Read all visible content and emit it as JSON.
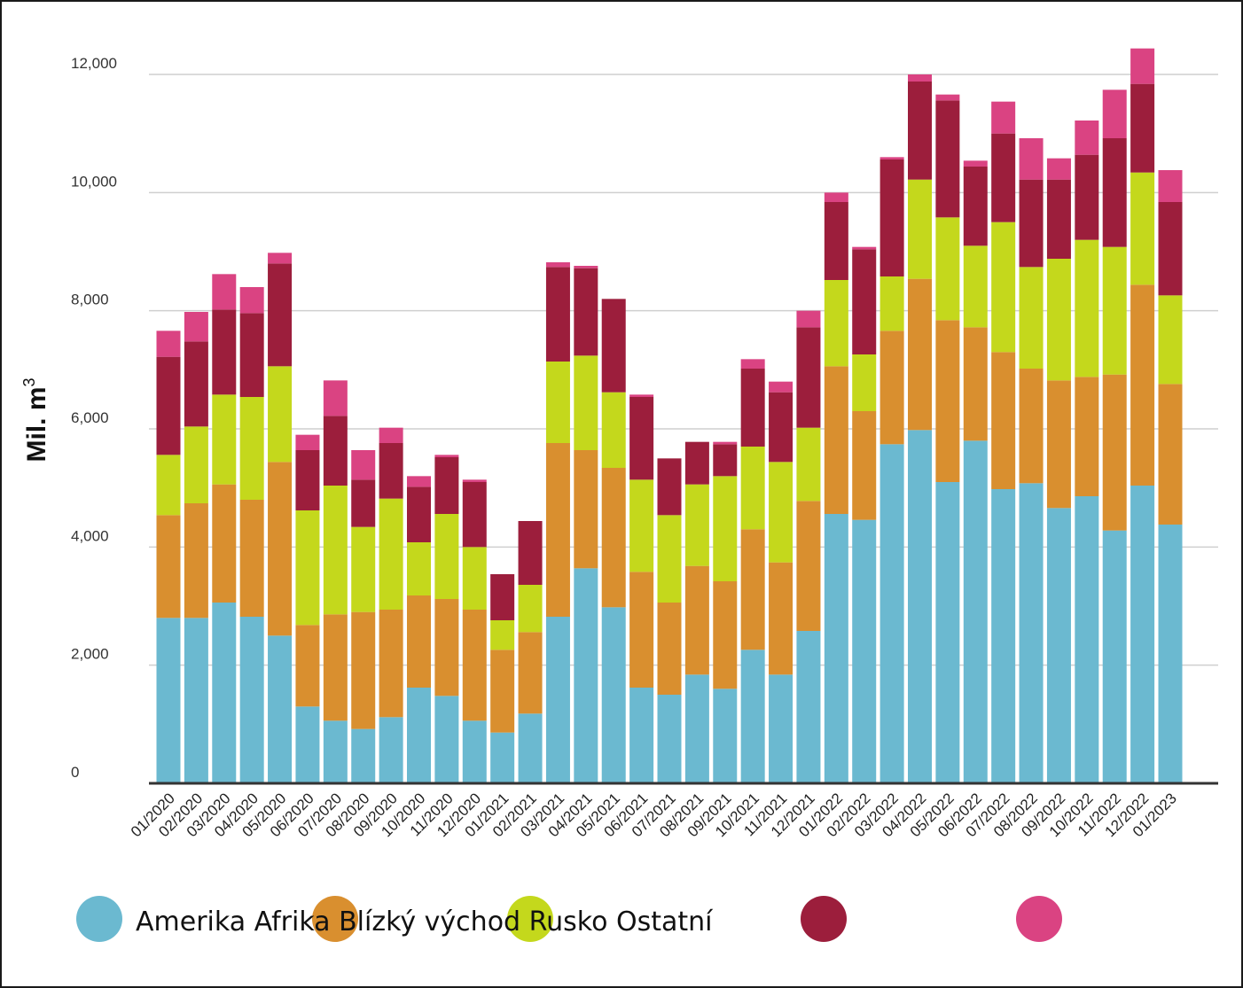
{
  "chart_data": {
    "type": "bar",
    "stacked": true,
    "ylabel": "Mil. m³",
    "ylim": [
      0,
      12000
    ],
    "yticks": [
      0,
      2000,
      4000,
      6000,
      8000,
      10000,
      12000
    ],
    "ytick_labels": [
      "0",
      "2,000",
      "4,000",
      "6,000",
      "8,000",
      "10,000",
      "12,000"
    ],
    "grid": true,
    "legend_placement": "bottom",
    "legend_text": "Amerika Afrika Blízký východ Rusko Ostatní",
    "categories": [
      "01/2020",
      "02/2020",
      "03/2020",
      "04/2020",
      "05/2020",
      "06/2020",
      "07/2020",
      "08/2020",
      "09/2020",
      "10/2020",
      "11/2020",
      "12/2020",
      "01/2021",
      "02/2021",
      "03/2021",
      "04/2021",
      "05/2021",
      "06/2021",
      "07/2021",
      "08/2021",
      "09/2021",
      "10/2021",
      "11/2021",
      "12/2021",
      "01/2022",
      "02/2022",
      "03/2022",
      "04/2022",
      "05/2022",
      "06/2022",
      "07/2022",
      "08/2022",
      "09/2022",
      "10/2022",
      "11/2022",
      "12/2022",
      "01/2023"
    ],
    "series": [
      {
        "name": "Amerika",
        "color": "#6bb9d0",
        "values": [
          2800,
          2800,
          3060,
          2820,
          2500,
          1300,
          1060,
          920,
          1120,
          1620,
          1480,
          1060,
          860,
          1180,
          2820,
          3640,
          2980,
          1620,
          1500,
          1840,
          1600,
          2260,
          1840,
          2580,
          4560,
          4460,
          5740,
          5980,
          5100,
          5800,
          4980,
          5080,
          4660,
          4860,
          4280,
          5040,
          4380
        ]
      },
      {
        "name": "Afrika",
        "color": "#d98f2f",
        "values": [
          1740,
          1940,
          2000,
          1980,
          2940,
          1380,
          1800,
          1980,
          1820,
          1560,
          1640,
          1880,
          1400,
          1380,
          2940,
          2000,
          2360,
          1960,
          1560,
          1840,
          1820,
          2040,
          1900,
          2200,
          2500,
          1840,
          1920,
          2560,
          2740,
          1920,
          2320,
          1940,
          2160,
          2020,
          2640,
          3400,
          2380
        ]
      },
      {
        "name": "Blízký východ",
        "color": "#c4d81c",
        "values": [
          1020,
          1300,
          1520,
          1740,
          1620,
          1940,
          2180,
          1440,
          1880,
          900,
          1440,
          1060,
          500,
          800,
          1380,
          1600,
          1280,
          1560,
          1480,
          1380,
          1780,
          1400,
          1700,
          1240,
          1460,
          960,
          920,
          1680,
          1740,
          1380,
          2200,
          1720,
          2060,
          2320,
          2160,
          1900,
          1500
        ]
      },
      {
        "name": "Rusko",
        "color": "#9c1e3c",
        "values": [
          1660,
          1440,
          1440,
          1420,
          1740,
          1020,
          1180,
          800,
          940,
          940,
          960,
          1100,
          780,
          1080,
          1600,
          1480,
          1580,
          1400,
          960,
          720,
          540,
          1320,
          1180,
          1700,
          1320,
          1780,
          1980,
          1660,
          1980,
          1340,
          1500,
          1480,
          1340,
          1440,
          1840,
          1500,
          1580
        ]
      },
      {
        "name": "Ostatní",
        "color": "#da4382",
        "values": [
          440,
          500,
          600,
          440,
          180,
          260,
          600,
          500,
          260,
          180,
          40,
          40,
          0,
          0,
          80,
          40,
          0,
          40,
          0,
          0,
          40,
          160,
          180,
          280,
          160,
          40,
          40,
          120,
          100,
          100,
          540,
          700,
          360,
          580,
          820,
          600,
          540
        ]
      }
    ]
  }
}
